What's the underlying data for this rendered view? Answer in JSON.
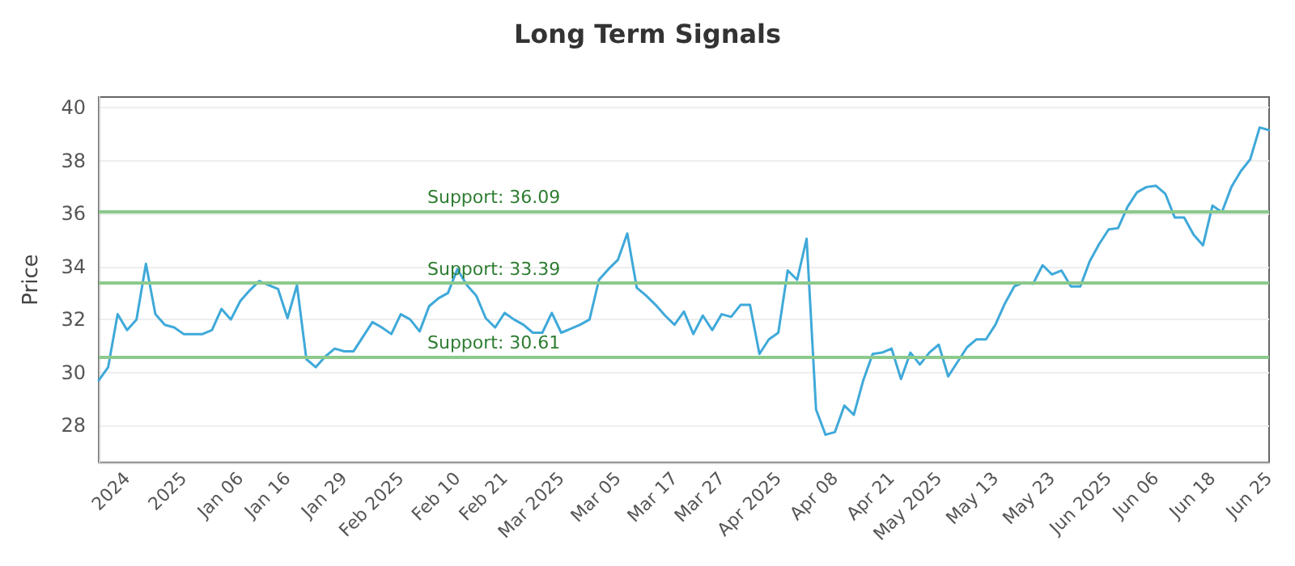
{
  "chart_data": {
    "type": "line",
    "title": "Long Term Signals",
    "ylabel": "Price",
    "categories": [
      null,
      null,
      null,
      "2024",
      null,
      null,
      null,
      null,
      null,
      "2025",
      null,
      null,
      null,
      null,
      null,
      "Jan 06",
      null,
      null,
      null,
      null,
      "Jan 16",
      null,
      null,
      null,
      null,
      null,
      "Jan 29",
      null,
      null,
      null,
      null,
      null,
      "Feb 2025",
      null,
      null,
      null,
      null,
      null,
      "Feb 10",
      null,
      null,
      null,
      null,
      "Feb 21",
      null,
      null,
      null,
      null,
      null,
      "Mar 2025",
      null,
      null,
      null,
      null,
      null,
      "Mar 05",
      null,
      null,
      null,
      null,
      null,
      "Mar 17",
      null,
      null,
      null,
      null,
      "Mar 27",
      null,
      null,
      null,
      null,
      null,
      "Apr 2025",
      null,
      null,
      null,
      null,
      null,
      "Apr 08",
      null,
      null,
      null,
      null,
      null,
      "Apr 21",
      null,
      null,
      null,
      null,
      "May 2025",
      null,
      null,
      null,
      null,
      null,
      "May 13",
      null,
      null,
      null,
      null,
      null,
      "May 23",
      null,
      null,
      null,
      null,
      null,
      "Jun 2025",
      null,
      null,
      null,
      null,
      "Jun 06",
      null,
      null,
      null,
      null,
      null,
      "Jun 18",
      null,
      null,
      null,
      null,
      null,
      "Jun 25"
    ],
    "series": [
      {
        "color": "#3fa9d9",
        "values": [
          29.7,
          30.2,
          32.2,
          31.6,
          32.0,
          34.1,
          32.2,
          31.8,
          31.7,
          31.45,
          31.45,
          31.45,
          31.6,
          32.4,
          32.0,
          32.7,
          33.1,
          33.45,
          33.3,
          33.15,
          32.05,
          33.3,
          30.5,
          30.2,
          30.6,
          30.9,
          30.8,
          30.8,
          31.35,
          31.9,
          31.7,
          31.45,
          32.2,
          32.0,
          31.55,
          32.5,
          32.8,
          33.0,
          33.9,
          33.3,
          32.9,
          32.05,
          31.7,
          32.25,
          32.0,
          31.8,
          31.5,
          31.5,
          32.25,
          31.5,
          31.65,
          31.8,
          32.0,
          33.5,
          33.9,
          34.25,
          35.25,
          33.2,
          32.9,
          32.55,
          32.15,
          31.8,
          32.3,
          31.45,
          32.15,
          31.6,
          32.2,
          32.1,
          32.55,
          32.55,
          30.7,
          31.25,
          31.5,
          33.85,
          33.5,
          35.05,
          28.6,
          27.65,
          27.75,
          28.75,
          28.4,
          29.7,
          30.7,
          30.75,
          30.9,
          29.75,
          30.75,
          30.3,
          30.75,
          31.05,
          29.85,
          30.4,
          30.95,
          31.25,
          31.25,
          31.8,
          32.6,
          33.25,
          33.4,
          33.35,
          34.05,
          33.7,
          33.85,
          33.25,
          33.25,
          34.2,
          34.85,
          35.4,
          35.45,
          36.25,
          36.8,
          37.0,
          37.05,
          36.75,
          35.85,
          35.85,
          35.2,
          34.8,
          36.3,
          36.05,
          37.0,
          37.6,
          38.05,
          39.25,
          39.15
        ]
      }
    ],
    "ylim": [
      26.6,
      40.4
    ],
    "yticks": [
      28,
      30,
      32,
      34,
      36,
      38,
      40
    ],
    "ref_lines": [
      {
        "axis": "y",
        "value": 36.09,
        "label": "Support: 36.09",
        "color": "#8cc98c"
      },
      {
        "axis": "y",
        "value": 33.39,
        "label": "Support: 33.39",
        "color": "#8cc98c"
      },
      {
        "axis": "y",
        "value": 30.61,
        "label": "Support: 30.61",
        "color": "#8cc98c"
      }
    ],
    "grid": "y",
    "marker": "none",
    "line_style": "solid"
  }
}
